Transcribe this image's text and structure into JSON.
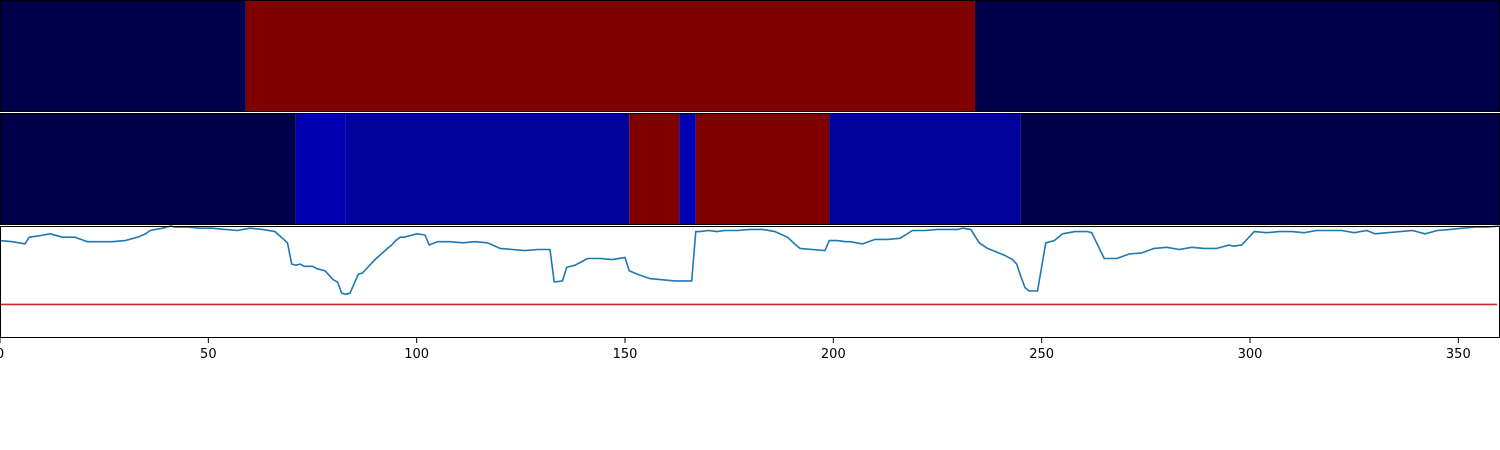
{
  "chart_data": [
    {
      "type": "heatmap",
      "name_hidden": true,
      "segments": [
        {
          "start": 0,
          "end": 59,
          "color": "#00004a"
        },
        {
          "start": 59,
          "end": 234,
          "color": "#800000"
        },
        {
          "start": 234,
          "end": 360,
          "color": "#00004a"
        }
      ]
    },
    {
      "type": "heatmap",
      "segments": [
        {
          "start": 0,
          "end": 71,
          "color": "#00004a"
        },
        {
          "start": 71,
          "end": 83,
          "color": "#0000b2"
        },
        {
          "start": 83,
          "end": 151,
          "color": "#00009a"
        },
        {
          "start": 151,
          "end": 163,
          "color": "#800000"
        },
        {
          "start": 163,
          "end": 167,
          "color": "#0000b2"
        },
        {
          "start": 167,
          "end": 199,
          "color": "#800000"
        },
        {
          "start": 199,
          "end": 245,
          "color": "#00009a"
        },
        {
          "start": 245,
          "end": 360,
          "color": "#00004a"
        }
      ]
    },
    {
      "type": "line",
      "xlim": [
        0,
        360
      ],
      "ylim": [
        0,
        1
      ],
      "threshold": 0.3,
      "line_color": "#1f77b4",
      "threshold_color": "#d62728",
      "series": [
        {
          "x": [
            0,
            3,
            6,
            7,
            9,
            12,
            15,
            18,
            21,
            24,
            27,
            30,
            33,
            35,
            36,
            39,
            41,
            42,
            45,
            48,
            51,
            54,
            57,
            60,
            63,
            66,
            69,
            70,
            71,
            72,
            73,
            75,
            76,
            78,
            80,
            81,
            82,
            83,
            84,
            86,
            87,
            90,
            93,
            94,
            95,
            96,
            97,
            99,
            100,
            102,
            103,
            105,
            108,
            111,
            114,
            117,
            120,
            123,
            126,
            129,
            132,
            133,
            135,
            136,
            138,
            139,
            141,
            144,
            147,
            150,
            151,
            153,
            156,
            159,
            162,
            165,
            166,
            167,
            168,
            170,
            172,
            174,
            177,
            180,
            183,
            186,
            189,
            191,
            192,
            195,
            198,
            199,
            201,
            203,
            204,
            207,
            210,
            213,
            216,
            219,
            222,
            225,
            228,
            230,
            231,
            233,
            235,
            237,
            239,
            241,
            243,
            244,
            245,
            246,
            247,
            249,
            251,
            253,
            255,
            258,
            261,
            262,
            265,
            268,
            271,
            274,
            277,
            280,
            283,
            286,
            289,
            292,
            295,
            296,
            298,
            301,
            304,
            307,
            310,
            313,
            316,
            319,
            322,
            325,
            328,
            330,
            333,
            336,
            339,
            342,
            345,
            348,
            351,
            354,
            357,
            360
          ],
          "y": [
            0.87,
            0.86,
            0.84,
            0.9,
            0.91,
            0.93,
            0.9,
            0.9,
            0.86,
            0.86,
            0.86,
            0.87,
            0.9,
            0.93,
            0.96,
            0.98,
            1.0,
            0.99,
            0.99,
            0.98,
            0.98,
            0.97,
            0.96,
            0.98,
            0.97,
            0.95,
            0.85,
            0.66,
            0.65,
            0.66,
            0.64,
            0.64,
            0.62,
            0.6,
            0.52,
            0.5,
            0.4,
            0.39,
            0.4,
            0.57,
            0.58,
            0.7,
            0.8,
            0.83,
            0.87,
            0.9,
            0.9,
            0.92,
            0.93,
            0.92,
            0.83,
            0.86,
            0.86,
            0.85,
            0.86,
            0.85,
            0.8,
            0.79,
            0.78,
            0.79,
            0.79,
            0.5,
            0.51,
            0.63,
            0.65,
            0.67,
            0.71,
            0.71,
            0.7,
            0.72,
            0.6,
            0.57,
            0.53,
            0.52,
            0.51,
            0.51,
            0.51,
            0.95,
            0.95,
            0.96,
            0.95,
            0.96,
            0.96,
            0.97,
            0.97,
            0.95,
            0.9,
            0.83,
            0.8,
            0.79,
            0.78,
            0.87,
            0.87,
            0.86,
            0.86,
            0.84,
            0.88,
            0.88,
            0.89,
            0.96,
            0.96,
            0.97,
            0.97,
            0.97,
            0.98,
            0.97,
            0.85,
            0.8,
            0.77,
            0.74,
            0.7,
            0.66,
            0.55,
            0.45,
            0.42,
            0.42,
            0.85,
            0.87,
            0.93,
            0.95,
            0.95,
            0.94,
            0.71,
            0.71,
            0.75,
            0.76,
            0.8,
            0.81,
            0.79,
            0.81,
            0.8,
            0.8,
            0.83,
            0.82,
            0.83,
            0.95,
            0.94,
            0.95,
            0.95,
            0.94,
            0.96,
            0.96,
            0.96,
            0.94,
            0.96,
            0.93,
            0.94,
            0.95,
            0.96,
            0.93,
            0.96,
            0.97,
            0.98,
            0.99,
            0.99,
            1.0
          ],
          "color": "#1f77b4"
        }
      ],
      "xticks": [
        "0",
        "50",
        "100",
        "150",
        "200",
        "250",
        "300",
        "350"
      ],
      "xtick_values": [
        0,
        50,
        100,
        150,
        200,
        250,
        300,
        350
      ]
    }
  ]
}
